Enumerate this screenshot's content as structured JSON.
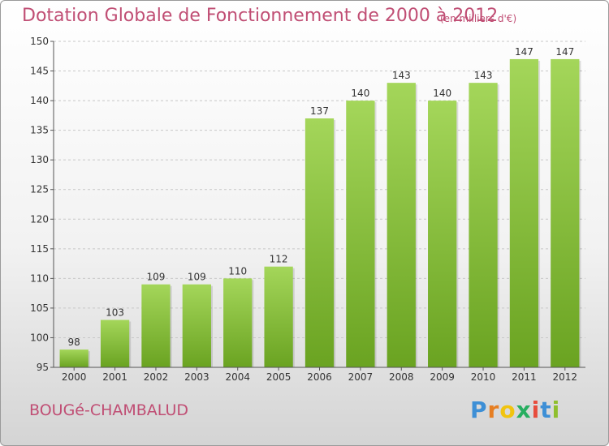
{
  "title": "Dotation Globale de Fonctionnement de 2000 à 2012",
  "unit": "(en milliers d'€)",
  "commune": "BOUGé-CHAMBALUD",
  "logo": {
    "letters": [
      "P",
      "r",
      "o",
      "x",
      "i",
      "t",
      "i"
    ],
    "colors": [
      "#3d8fd6",
      "#e67e22",
      "#f1c40f",
      "#27ae60",
      "#e74c3c",
      "#3d8fd6",
      "#8fbf2e"
    ]
  },
  "colors": {
    "bar": "#79b42e",
    "bar_light": "#a4d65a",
    "text": "#c04e74"
  },
  "chart_data": {
    "type": "bar",
    "title": "Dotation Globale de Fonctionnement de 2000 à 2012",
    "subtitle": "(en milliers d'€)",
    "xlabel": "",
    "ylabel": "",
    "categories": [
      "2000",
      "2001",
      "2002",
      "2003",
      "2004",
      "2005",
      "2006",
      "2007",
      "2008",
      "2009",
      "2010",
      "2011",
      "2012"
    ],
    "values": [
      98,
      103,
      109,
      109,
      110,
      112,
      137,
      140,
      143,
      140,
      143,
      147,
      147
    ],
    "ylim": [
      95,
      150
    ],
    "yticks": [
      95,
      100,
      105,
      110,
      115,
      120,
      125,
      130,
      135,
      140,
      145,
      150
    ],
    "grid": true,
    "data_labels": true
  }
}
